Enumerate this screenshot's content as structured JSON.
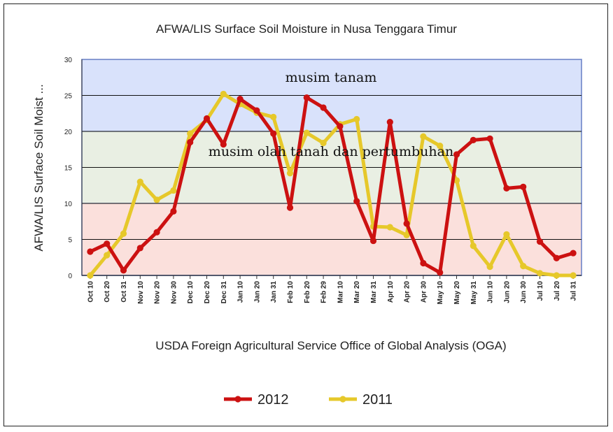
{
  "chart_data": {
    "type": "line",
    "title": "AFWA/LIS Surface Soil Moisture in Nusa Tenggara Timur",
    "ylabel": "AFWA/LIS  Surface  Soil Moist ...",
    "xlabel": "",
    "ylim": [
      0,
      30
    ],
    "yticks": [
      "0",
      "5",
      "10",
      "15",
      "20",
      "25",
      "30"
    ],
    "grid": true,
    "legend_position": "bottom",
    "categories": [
      "Oct 10",
      "Oct 20",
      "Oct 31",
      "Nov 10",
      "Nov 20",
      "Nov 30",
      "Dec 10",
      "Dec 20",
      "Dec 31",
      "Jan 10",
      "Jan 20",
      "Jan 31",
      "Feb 10",
      "Feb 20",
      "Feb 29",
      "Mar 10",
      "Mar 20",
      "Mar 31",
      "Apr 10",
      "Apr 20",
      "Apr 30",
      "May 10",
      "May 20",
      "May 31",
      "Jun 10",
      "Jun 20",
      "Jun 30",
      "Jul 10",
      "Jul 20",
      "Jul 31"
    ],
    "series": [
      {
        "name": "2012",
        "color": "#cc1111",
        "values": [
          3.3,
          4.4,
          0.7,
          3.8,
          6.0,
          8.9,
          18.5,
          21.8,
          18.2,
          24.5,
          22.9,
          19.7,
          9.4,
          24.7,
          23.3,
          20.7,
          10.3,
          4.8,
          21.3,
          7.2,
          1.7,
          0.4,
          16.8,
          18.8,
          19.0,
          12.1,
          12.3,
          4.7,
          2.4,
          3.1
        ]
      },
      {
        "name": "2011",
        "color": "#e6c82a",
        "values": [
          0.0,
          2.8,
          5.8,
          13.0,
          10.5,
          11.8,
          19.7,
          21.6,
          25.2,
          23.8,
          22.6,
          22.0,
          14.2,
          19.8,
          18.4,
          21.0,
          21.7,
          6.8,
          6.7,
          5.6,
          19.3,
          18.0,
          13.2,
          4.1,
          1.2,
          5.7,
          1.3,
          0.3,
          0.0,
          0.0
        ]
      }
    ],
    "bands": [
      {
        "from": 20,
        "to": 30,
        "color": "#d9e2fb",
        "label": "musim tanam"
      },
      {
        "from": 10,
        "to": 20,
        "color": "#e9efe3",
        "label": "musim olah tanah dan pertumbuhan"
      },
      {
        "from": 0,
        "to": 10,
        "color": "#fbe0dc",
        "label": ""
      }
    ],
    "source": "USDA Foreign Agricultural Service Office of Global Analysis (OGA)"
  }
}
